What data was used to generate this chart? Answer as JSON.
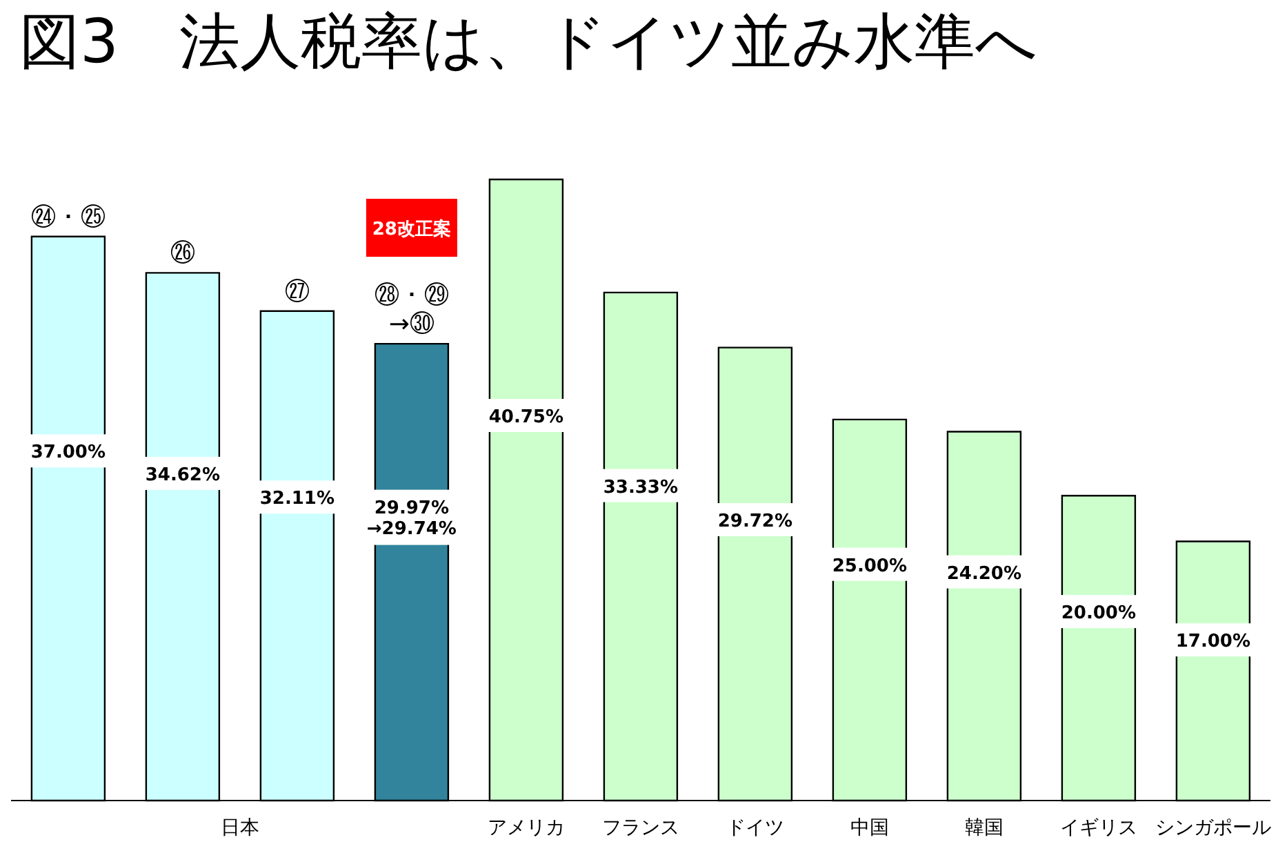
{
  "chart_data": {
    "type": "bar",
    "title": "図3　法人税率は、ドイツ並み水準へ",
    "categories": [
      null,
      null,
      null,
      null,
      "アメリカ",
      "フランス",
      "ドイツ",
      "中国",
      "韓国",
      "イギリス",
      "シンガポール"
    ],
    "values": [
      37.0,
      34.62,
      32.11,
      29.97,
      40.75,
      33.33,
      29.72,
      25.0,
      24.2,
      20.0,
      17.0
    ],
    "colors": [
      "#ccffff",
      "#ccffff",
      "#ccffff",
      "#31849b",
      "#ccffcc",
      "#ccffcc",
      "#ccffcc",
      "#ccffcc",
      "#ccffcc",
      "#ccffcc",
      "#ccffcc"
    ],
    "value_labels": [
      "37.00%",
      "34.62%",
      "32.11%",
      "29.97%\n→29.74%",
      "40.75%",
      "33.33%",
      "29.72%",
      "25.00%",
      "24.20%",
      "20.00%",
      "17.00%"
    ],
    "annotations": [
      "日本",
      "28改正案",
      "㉔・㉕",
      "㉖",
      "㉗",
      "㉘・㉙\n→㉚"
    ]
  }
}
